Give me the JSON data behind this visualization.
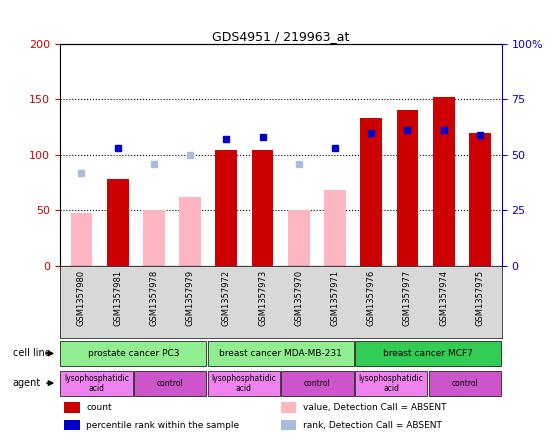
{
  "title": "GDS4951 / 219963_at",
  "samples": [
    "GSM1357980",
    "GSM1357981",
    "GSM1357978",
    "GSM1357979",
    "GSM1357972",
    "GSM1357973",
    "GSM1357970",
    "GSM1357971",
    "GSM1357976",
    "GSM1357977",
    "GSM1357974",
    "GSM1357975"
  ],
  "count_values": [
    null,
    78,
    null,
    null,
    104,
    104,
    null,
    null,
    133,
    140,
    152,
    120
  ],
  "percentile_values": [
    null,
    53,
    null,
    null,
    57,
    58,
    null,
    53,
    60,
    61,
    61,
    59
  ],
  "absent_count_values": [
    48,
    null,
    50,
    62,
    null,
    null,
    50,
    68,
    null,
    null,
    null,
    null
  ],
  "absent_rank_values": [
    42,
    null,
    46,
    50,
    null,
    null,
    46,
    null,
    null,
    null,
    null,
    null
  ],
  "cell_line_groups": [
    {
      "label": "prostate cancer PC3",
      "start": 0,
      "end": 4,
      "color": "#90ee90"
    },
    {
      "label": "breast cancer MDA-MB-231",
      "start": 4,
      "end": 8,
      "color": "#90ee90"
    },
    {
      "label": "breast cancer MCF7",
      "start": 8,
      "end": 12,
      "color": "#33cc55"
    }
  ],
  "agent_groups": [
    {
      "label": "lysophosphatidic\nacid",
      "start": 0,
      "end": 2,
      "color": "#ee82ee"
    },
    {
      "label": "control",
      "start": 2,
      "end": 4,
      "color": "#cc55cc"
    },
    {
      "label": "lysophosphatidic\nacid",
      "start": 4,
      "end": 6,
      "color": "#ee82ee"
    },
    {
      "label": "control",
      "start": 6,
      "end": 8,
      "color": "#cc55cc"
    },
    {
      "label": "lysophosphatidic\nacid",
      "start": 8,
      "end": 10,
      "color": "#ee82ee"
    },
    {
      "label": "control",
      "start": 10,
      "end": 12,
      "color": "#cc55cc"
    }
  ],
  "ylim_left": [
    0,
    200
  ],
  "ylim_right": [
    0,
    100
  ],
  "yticks_left": [
    0,
    50,
    100,
    150,
    200
  ],
  "yticks_right": [
    0,
    25,
    50,
    75,
    100
  ],
  "ytick_labels_left": [
    "0",
    "50",
    "100",
    "150",
    "200"
  ],
  "ytick_labels_right": [
    "0",
    "25",
    "50",
    "75",
    "100%"
  ],
  "color_count": "#cc0000",
  "color_percentile": "#0000cc",
  "color_absent_count": "#ffb6c1",
  "color_absent_rank": "#aabbdd",
  "legend_items": [
    {
      "label": "count",
      "color": "#cc0000",
      "marker": "square"
    },
    {
      "label": "percentile rank within the sample",
      "color": "#0000cc",
      "marker": "square"
    },
    {
      "label": "value, Detection Call = ABSENT",
      "color": "#ffb6c1",
      "marker": "square"
    },
    {
      "label": "rank, Detection Call = ABSENT",
      "color": "#aabbdd",
      "marker": "square"
    }
  ],
  "cell_line_row_label": "cell line",
  "agent_row_label": "agent",
  "background_color": "#ffffff"
}
